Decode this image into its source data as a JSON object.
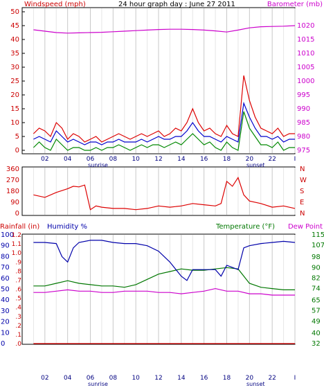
{
  "chart_data": [
    {
      "type": "line",
      "panel": "wind-barometer",
      "title": "24 hour graph day : June 27 2011",
      "left_axis_label": "Windspeed (mph)",
      "right_axis_label": "Barometer (mb)",
      "left_ticks": [
        "0",
        "5",
        "10",
        "15",
        "20",
        "25",
        "30",
        "35",
        "40",
        "45",
        "50"
      ],
      "right_ticks": [
        "975",
        "980",
        "985",
        "990",
        "995",
        "1000",
        "1005",
        "1010",
        "1015",
        "1020"
      ],
      "ylim_left": [
        0,
        50
      ],
      "ylim_right": [
        975,
        1025
      ],
      "x_ticks": [
        "02",
        "04",
        "06",
        "08",
        "10",
        "12",
        "14",
        "16",
        "18",
        "20",
        "22"
      ],
      "sunrise_label": "sunrise",
      "sunset_label": "sunset",
      "series": [
        {
          "color": "#dd0000",
          "axis": "left",
          "x": [
            0,
            0.5,
            1,
            1.5,
            2,
            2.5,
            3,
            3.5,
            4,
            4.5,
            5,
            5.5,
            6,
            6.5,
            7,
            7.5,
            8,
            8.5,
            9,
            9.5,
            10,
            10.5,
            11,
            11.5,
            12,
            12.5,
            13,
            13.5,
            14,
            14.5,
            15,
            15.5,
            16,
            16.5,
            17,
            17.5,
            18,
            18.5,
            19,
            19.5,
            20,
            20.5,
            21,
            21.5,
            22,
            22.5,
            23
          ],
          "y": [
            6,
            8,
            7,
            5,
            10,
            8,
            4,
            6,
            5,
            3,
            4,
            5,
            3,
            4,
            5,
            6,
            5,
            4,
            5,
            6,
            5,
            6,
            7,
            5,
            6,
            8,
            7,
            10,
            15,
            10,
            7,
            8,
            6,
            5,
            9,
            6,
            5,
            27,
            18,
            12,
            8,
            7,
            6,
            8,
            5,
            6,
            6
          ]
        },
        {
          "color": "#0000cc",
          "axis": "left",
          "x": [
            0,
            0.5,
            1,
            1.5,
            2,
            2.5,
            3,
            3.5,
            4,
            4.5,
            5,
            5.5,
            6,
            6.5,
            7,
            7.5,
            8,
            8.5,
            9,
            9.5,
            10,
            10.5,
            11,
            11.5,
            12,
            12.5,
            13,
            13.5,
            14,
            14.5,
            15,
            15.5,
            16,
            16.5,
            17,
            17.5,
            18,
            18.5,
            19,
            19.5,
            20,
            20.5,
            21,
            21.5,
            22,
            22.5,
            23
          ],
          "y": [
            4,
            5,
            4,
            3,
            7,
            5,
            3,
            4,
            3,
            2,
            3,
            3,
            2,
            3,
            3,
            4,
            3,
            3,
            3,
            4,
            3,
            4,
            5,
            4,
            4,
            5,
            5,
            7,
            10,
            7,
            5,
            5,
            4,
            3,
            5,
            4,
            3,
            17,
            12,
            8,
            5,
            5,
            4,
            5,
            3,
            4,
            4
          ]
        },
        {
          "color": "#008800",
          "axis": "left",
          "x": [
            0,
            0.5,
            1,
            1.5,
            2,
            2.5,
            3,
            3.5,
            4,
            4.5,
            5,
            5.5,
            6,
            6.5,
            7,
            7.5,
            8,
            8.5,
            9,
            9.5,
            10,
            10.5,
            11,
            11.5,
            12,
            12.5,
            13,
            13.5,
            14,
            14.5,
            15,
            15.5,
            16,
            16.5,
            17,
            17.5,
            18,
            18.5,
            19,
            19.5,
            20,
            20.5,
            21,
            21.5,
            22,
            22.5,
            23
          ],
          "y": [
            1,
            3,
            1,
            0,
            4,
            2,
            0,
            1,
            1,
            0,
            0,
            1,
            0,
            1,
            1,
            2,
            1,
            0,
            1,
            2,
            1,
            2,
            2,
            1,
            2,
            3,
            2,
            4,
            6,
            4,
            2,
            3,
            1,
            0,
            3,
            1,
            0,
            14,
            8,
            5,
            2,
            2,
            1,
            3,
            0,
            1,
            1
          ]
        },
        {
          "color": "#cc00cc",
          "axis": "right",
          "x": [
            0,
            1,
            2,
            3,
            4,
            5,
            6,
            7,
            8,
            9,
            10,
            11,
            12,
            13,
            14,
            15,
            16,
            17,
            18,
            19,
            20,
            21,
            22,
            23
          ],
          "y": [
            1018.5,
            1018,
            1017.5,
            1017.3,
            1017.4,
            1017.5,
            1017.6,
            1017.8,
            1018,
            1018.2,
            1018.4,
            1018.6,
            1018.7,
            1018.7,
            1018.6,
            1018.4,
            1018.1,
            1017.7,
            1018.4,
            1019.2,
            1019.6,
            1019.7,
            1019.8,
            1020
          ]
        }
      ]
    },
    {
      "type": "line",
      "panel": "wind-direction",
      "left_ticks": [
        "0",
        "90",
        "180",
        "270",
        "360"
      ],
      "right_ticks": [
        "N",
        "E",
        "S",
        "W",
        "N"
      ],
      "ylim": [
        0,
        360
      ],
      "series": [
        {
          "color": "#dd0000",
          "x": [
            0,
            1,
            2,
            3,
            3.5,
            4,
            4.5,
            5,
            5.5,
            6,
            7,
            8,
            9,
            10,
            11,
            12,
            13,
            14,
            15,
            16,
            16.5,
            17,
            17.5,
            18,
            18.5,
            19,
            20,
            21,
            22,
            23
          ],
          "y": [
            150,
            130,
            170,
            200,
            220,
            215,
            230,
            30,
            60,
            50,
            40,
            40,
            30,
            40,
            60,
            50,
            60,
            80,
            70,
            60,
            80,
            260,
            220,
            290,
            150,
            100,
            80,
            50,
            60,
            40
          ]
        }
      ]
    },
    {
      "type": "line",
      "panel": "rain-humidity-temp",
      "rain_label": "Rainfall (in)",
      "humidity_label": "Humidity %",
      "temp_label": "Temperature (°F)",
      "dew_label": "Dew Point",
      "humidity_ticks": [
        "0",
        "10",
        "20",
        "30",
        "40",
        "50",
        "60",
        "70",
        "80",
        "90",
        "100"
      ],
      "rain_ticks": [
        "0.0",
        "0.1",
        "0.2",
        "0.3",
        "0.4",
        "0.5",
        "0.6",
        "0.7",
        "0.8",
        "0.9",
        "1.0",
        "1.1",
        "1.2"
      ],
      "temp_ticks": [
        "32",
        "40",
        "49",
        "57",
        "65",
        "74",
        "82",
        "90",
        "98",
        "107",
        "115"
      ],
      "ylim_humidity": [
        0,
        100
      ],
      "ylim_temp": [
        32,
        115
      ],
      "series": [
        {
          "color": "#0000aa",
          "axis": "humidity",
          "x": [
            0,
            1,
            2,
            2.5,
            3,
            3.5,
            4,
            5,
            6,
            7,
            8,
            9,
            10,
            11,
            12,
            13,
            13.5,
            14,
            15,
            16,
            16.5,
            17,
            17.5,
            18,
            18.5,
            19,
            20,
            21,
            22,
            23
          ],
          "y": [
            93,
            93,
            92,
            80,
            75,
            88,
            93,
            95,
            95,
            93,
            92,
            92,
            90,
            85,
            75,
            62,
            58,
            68,
            68,
            68,
            62,
            72,
            70,
            68,
            88,
            90,
            92,
            93,
            94,
            93
          ]
        },
        {
          "color": "#007700",
          "axis": "temp",
          "x": [
            0,
            1,
            2,
            3,
            4,
            5,
            6,
            7,
            8,
            9,
            10,
            11,
            12,
            13,
            14,
            15,
            16,
            17,
            18,
            19,
            20,
            21,
            22,
            23
          ],
          "y": [
            76,
            76,
            78,
            80,
            78,
            77,
            76,
            76,
            75,
            77,
            81,
            85,
            87,
            89,
            88,
            88,
            89,
            90,
            89,
            78,
            75,
            74,
            73,
            73
          ]
        },
        {
          "color": "#cc00cc",
          "axis": "temp",
          "x": [
            0,
            1,
            2,
            3,
            4,
            5,
            6,
            7,
            8,
            9,
            10,
            11,
            12,
            13,
            14,
            15,
            16,
            17,
            18,
            19,
            20,
            21,
            22,
            23
          ],
          "y": [
            71,
            71,
            72,
            73,
            72,
            72,
            71,
            71,
            72,
            72,
            72,
            71,
            71,
            70,
            71,
            72,
            74,
            72,
            72,
            70,
            70,
            69,
            69,
            69
          ]
        },
        {
          "color": "#dd0000",
          "axis": "rain",
          "x": [
            0,
            23
          ],
          "y": [
            0,
            0
          ]
        }
      ]
    }
  ]
}
